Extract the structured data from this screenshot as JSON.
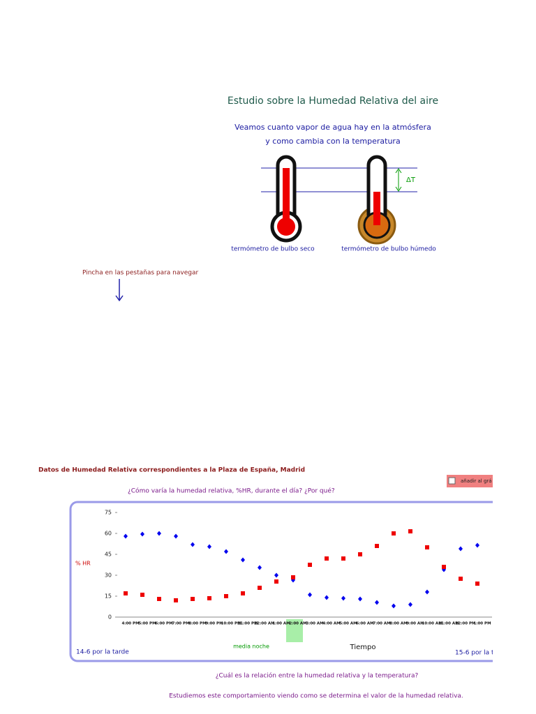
{
  "header": {
    "title": "Estudio sobre la Humedad Relativa del aire",
    "subtitle_lines": [
      "Veamos cuanto vapor de agua hay en la atmósfera",
      "y como cambia con la temperatura"
    ]
  },
  "thermometers": {
    "dry_label": "termómetro de bulbo seco",
    "wet_label": "termómetro de bulbo húmedo",
    "delta_label": "ΔT"
  },
  "navigation_hint": "Pincha en las pestañas para navegar",
  "section": {
    "title": "Datos de Humedad Relativa correspondientes a la Plaza de España, Madrid",
    "question": "¿Cómo varía la humedad relativa, %HR, durante el día? ¿Por qué?",
    "checkbox_label": "añadir al grá"
  },
  "chart_data": {
    "type": "scatter",
    "categories": [
      "4:00 PM",
      "5:00 PM",
      "6:00 PM",
      "7:00 PM",
      "8:00 PM",
      "9:00 PM",
      "10:00 PM",
      "11:00 PM",
      "12:00 AM",
      "1:00 AM",
      "2:00 AM",
      "3:00 AM",
      "4:00 AM",
      "5:00 AM",
      "6:00 AM",
      "7:00 AM",
      "8:00 AM",
      "9:00 AM",
      "10:00 AM",
      "11:00 AM",
      "12:00 PM",
      "1:00 PM"
    ],
    "series": [
      {
        "color": "#0000ee",
        "marker": "diamond",
        "values": [
          58,
          59.5,
          60,
          58,
          52,
          50.5,
          47,
          41,
          35.5,
          30,
          26.5,
          16,
          14,
          13.5,
          13,
          10.5,
          8,
          9,
          18,
          34,
          49,
          51.5
        ]
      },
      {
        "color": "#ee0000",
        "marker": "square",
        "values": [
          17,
          16,
          13,
          12,
          13,
          13.5,
          15,
          17,
          21,
          25.5,
          28.5,
          37.5,
          42,
          42,
          45,
          51,
          60,
          61.5,
          50,
          36,
          27.5,
          24
        ]
      }
    ],
    "ylim": [
      0,
      75
    ],
    "yticks": [
      0,
      15,
      30,
      45,
      60,
      75
    ],
    "ylabel": "% HR",
    "xlabel": "Tiempo",
    "annotations": [
      "media noche",
      "14-6 por la tarde",
      "15-6 por la t"
    ]
  },
  "footer": {
    "question": "¿Cuál es la relación entre la humedad relativa y la temperatura?",
    "note": "Estudiemos este comportamiento viendo como se determina el valor de la humedad relativa."
  }
}
